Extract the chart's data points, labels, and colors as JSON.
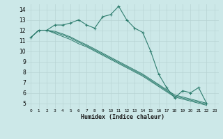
{
  "xlabel": "Humidex (Indice chaleur)",
  "line_color": "#2e7d6e",
  "bg_color": "#cce8e8",
  "grid_color": "#b8d4d4",
  "xlim": [
    -0.5,
    23.5
  ],
  "ylim": [
    4.5,
    14.5
  ],
  "xticks": [
    0,
    1,
    2,
    3,
    4,
    5,
    6,
    7,
    8,
    9,
    10,
    11,
    12,
    13,
    14,
    15,
    16,
    17,
    18,
    19,
    20,
    21,
    22,
    23
  ],
  "yticks": [
    5,
    6,
    7,
    8,
    9,
    10,
    11,
    12,
    13,
    14
  ],
  "series1_x": [
    0,
    1,
    2,
    3,
    4,
    5,
    6,
    7,
    8,
    9,
    10,
    11,
    12,
    13,
    14,
    15,
    16,
    17,
    18,
    19,
    20,
    21,
    22
  ],
  "series1_y": [
    11.3,
    12.0,
    12.0,
    12.5,
    12.5,
    12.7,
    13.0,
    12.5,
    12.2,
    13.3,
    13.5,
    14.3,
    13.0,
    12.2,
    11.8,
    10.0,
    7.8,
    6.5,
    5.5,
    6.2,
    6.0,
    6.5,
    5.0
  ],
  "series2_x": [
    0,
    1,
    2,
    3,
    4,
    5,
    6,
    7,
    8,
    9,
    10,
    11,
    12,
    13,
    14,
    15,
    16,
    17,
    18,
    19,
    20,
    21,
    22
  ],
  "series2_y": [
    11.3,
    12.0,
    12.0,
    11.7,
    11.4,
    11.1,
    10.7,
    10.4,
    10.0,
    9.6,
    9.2,
    8.8,
    8.4,
    8.0,
    7.6,
    7.1,
    6.6,
    6.1,
    5.6,
    5.4,
    5.2,
    5.0,
    4.8
  ],
  "series3_x": [
    0,
    1,
    2,
    3,
    4,
    5,
    6,
    7,
    8,
    9,
    10,
    11,
    12,
    13,
    14,
    15,
    16,
    17,
    18,
    19,
    20,
    21,
    22
  ],
  "series3_y": [
    11.3,
    12.0,
    12.0,
    11.8,
    11.55,
    11.25,
    10.85,
    10.5,
    10.1,
    9.7,
    9.3,
    8.9,
    8.5,
    8.1,
    7.7,
    7.2,
    6.7,
    6.2,
    5.7,
    5.5,
    5.3,
    5.1,
    4.9
  ],
  "series4_x": [
    0,
    1,
    2,
    3,
    4,
    5,
    6,
    7,
    8,
    9,
    10,
    11,
    12,
    13,
    14,
    15,
    16,
    17,
    18,
    19,
    20,
    21,
    22
  ],
  "series4_y": [
    11.3,
    12.0,
    12.0,
    11.9,
    11.65,
    11.35,
    10.95,
    10.6,
    10.2,
    9.8,
    9.4,
    9.0,
    8.6,
    8.2,
    7.8,
    7.3,
    6.8,
    6.3,
    5.8,
    5.6,
    5.4,
    5.2,
    5.0
  ]
}
